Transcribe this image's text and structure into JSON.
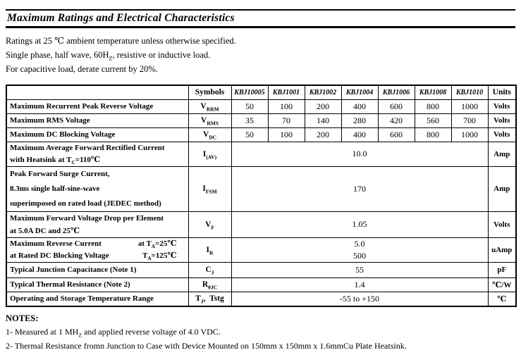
{
  "title": "Maximum Ratings and Electrical Characteristics",
  "intro_lines": [
    [
      {
        "t": "Ratings at 25 ℃ ambient temperature unless otherwise specified."
      }
    ],
    [
      {
        "t": "Single phase, half wave, 60H"
      },
      {
        "t": "Z",
        "sub": true
      },
      {
        "t": ", resistive or inductive load."
      }
    ],
    [
      {
        "t": "For capacitive load, derate current by 20%."
      }
    ]
  ],
  "table": {
    "header": {
      "param": "",
      "symbols": "Symbols",
      "part_numbers": [
        "KBJ10005",
        "KBJ1001",
        "KBJ1002",
        "KBJ1004",
        "KBJ1006",
        "KBJ1008",
        "KBJ1010"
      ],
      "units": "Units"
    },
    "rows": [
      {
        "param_lines": [
          [
            {
              "t": "Maximum Recurrent Peak Reverse Voltage"
            }
          ]
        ],
        "symbol": [
          {
            "t": "V"
          },
          {
            "t": "RRM",
            "sub": true
          }
        ],
        "values": [
          "50",
          "100",
          "200",
          "400",
          "600",
          "800",
          "1000"
        ],
        "unit": "Volts"
      },
      {
        "param_lines": [
          [
            {
              "t": "Maximum RMS Voltage"
            }
          ]
        ],
        "symbol": [
          {
            "t": "V"
          },
          {
            "t": "RMS",
            "sub": true
          }
        ],
        "values": [
          "35",
          "70",
          "140",
          "280",
          "420",
          "560",
          "700"
        ],
        "unit": "Volts"
      },
      {
        "param_lines": [
          [
            {
              "t": "Maximum DC Blocking Voltage"
            }
          ]
        ],
        "symbol": [
          {
            "t": "V"
          },
          {
            "t": "DC",
            "sub": true
          }
        ],
        "values": [
          "50",
          "100",
          "200",
          "400",
          "600",
          "800",
          "1000"
        ],
        "unit": "Volts"
      },
      {
        "param_lines": [
          [
            {
              "t": "Maximum Average Forward Rectified Current"
            }
          ],
          [
            {
              "t": "with Heatsink at T"
            },
            {
              "t": "C",
              "sub": true
            },
            {
              "t": "=110℃"
            }
          ]
        ],
        "symbol": [
          {
            "t": "I"
          },
          {
            "t": "(AV)",
            "sub": true
          }
        ],
        "merged_value": "10.0",
        "unit": "Amp"
      },
      {
        "param_lines": [
          [
            {
              "t": "Peak Forward Surge Current,"
            }
          ],
          [
            {
              "t": "8.3ms single half-sine-wave"
            }
          ],
          [
            {
              "t": "superimposed on rated load (JEDEC method)"
            }
          ]
        ],
        "symbol": [
          {
            "t": "I"
          },
          {
            "t": "FSM",
            "sub": true
          }
        ],
        "merged_value": "170",
        "unit": "Amp"
      },
      {
        "param_lines": [
          [
            {
              "t": "Maximum Forward Voltage Drop per Element"
            }
          ],
          [
            {
              "t": "at 5.0A DC and 25℃"
            }
          ]
        ],
        "symbol": [
          {
            "t": "V"
          },
          {
            "t": "F",
            "sub": true
          }
        ],
        "merged_value": "1.05",
        "unit": "Volts"
      },
      {
        "param_pairs": [
          {
            "left": [
              {
                "t": "Maximum Reverse Current"
              }
            ],
            "right": [
              {
                "t": "at T"
              },
              {
                "t": "A",
                "sub": true
              },
              {
                "t": "=25℃"
              }
            ]
          },
          {
            "left": [
              {
                "t": "at Rated DC Blocking Voltage"
              }
            ],
            "right": [
              {
                "t": "T"
              },
              {
                "t": "A",
                "sub": true
              },
              {
                "t": "=125℃"
              }
            ]
          }
        ],
        "symbol": [
          {
            "t": "I"
          },
          {
            "t": "R",
            "sub": true
          }
        ],
        "merged_values": [
          "5.0",
          "500"
        ],
        "unit": "uAmp"
      },
      {
        "param_lines": [
          [
            {
              "t": "Typical Junction Capacitance (Note 1)"
            }
          ]
        ],
        "symbol": [
          {
            "t": "C"
          },
          {
            "t": "J",
            "sub": true
          }
        ],
        "merged_value": "55",
        "unit": "pF"
      },
      {
        "param_lines": [
          [
            {
              "t": "Typical Thermal Resistance (Note 2)"
            }
          ]
        ],
        "symbol": [
          {
            "t": "R"
          },
          {
            "t": "θJC",
            "sub": true
          }
        ],
        "merged_value": "1.4",
        "unit": "℃/W"
      },
      {
        "param_lines": [
          [
            {
              "t": "Operating and Storage Temperature Range"
            }
          ]
        ],
        "symbol": [
          {
            "t": "T"
          },
          {
            "t": "J",
            "sub": true
          },
          {
            "t": ", Tstg"
          }
        ],
        "merged_value": "-55 to +150",
        "unit": "℃"
      }
    ]
  },
  "notes": {
    "heading": "NOTES:",
    "items": [
      [
        {
          "t": "1- Measured at 1 MH"
        },
        {
          "t": "Z",
          "sub": true
        },
        {
          "t": " and applied reverse voltage of 4.0 VDC."
        }
      ],
      [
        {
          "t": "2- Thermal Resistance fromn Junction to Case with Device Mounted on 150mm x 150mm x 1.6mmCu Plate Heatsink."
        }
      ]
    ]
  }
}
